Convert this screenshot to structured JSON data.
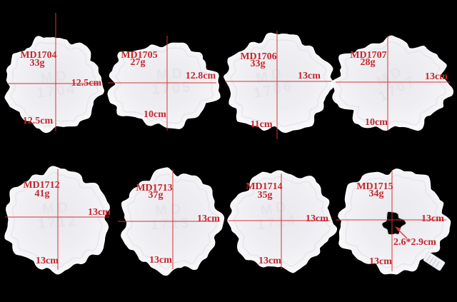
{
  "scene": {
    "description_note": "",
    "colors": {
      "background": "#000000",
      "annotation_text": "#c4262b",
      "dimension_line": "#d93333",
      "mold_surface": "#f2f2f5",
      "emboss_text": "#e3e3e9"
    }
  },
  "molds": [
    {
      "model": "MD1704",
      "weight": "33g",
      "width_label": "12.5cm",
      "height_label": "12.5cm",
      "emboss_line1": "MD",
      "emboss_line2": "1704"
    },
    {
      "model": "MD1705",
      "weight": "27g",
      "width_label": "12.8cm",
      "height_label": "10cm",
      "emboss_line1": "MD",
      "emboss_line2": "1705"
    },
    {
      "model": "MD1706",
      "weight": "33g",
      "width_label": "13cm",
      "height_label": "11cm",
      "emboss_line1": "MD",
      "emboss_line2": "1706"
    },
    {
      "model": "MD1707",
      "weight": "28g",
      "width_label": "13cm",
      "height_label": "10cm",
      "emboss_line1": "MD",
      "emboss_line2": "1707"
    },
    {
      "model": "MD1712",
      "weight": "41g",
      "width_label": "13cm",
      "height_label": "13cm",
      "emboss_line1": "MD",
      "emboss_line2": "1712"
    },
    {
      "model": "MD1713",
      "weight": "37g",
      "width_label": "13cm",
      "height_label": "13cm",
      "emboss_line1": "MD",
      "emboss_line2": "1713"
    },
    {
      "model": "MD1714",
      "weight": "35g",
      "width_label": "13cm",
      "height_label": "13cm",
      "emboss_line1": "MD",
      "emboss_line2": "1714"
    },
    {
      "model": "MD1715",
      "weight": "34g",
      "width_label": "13cm",
      "height_label": "13cm",
      "hole_label": "2.6*2.9cm"
    }
  ]
}
